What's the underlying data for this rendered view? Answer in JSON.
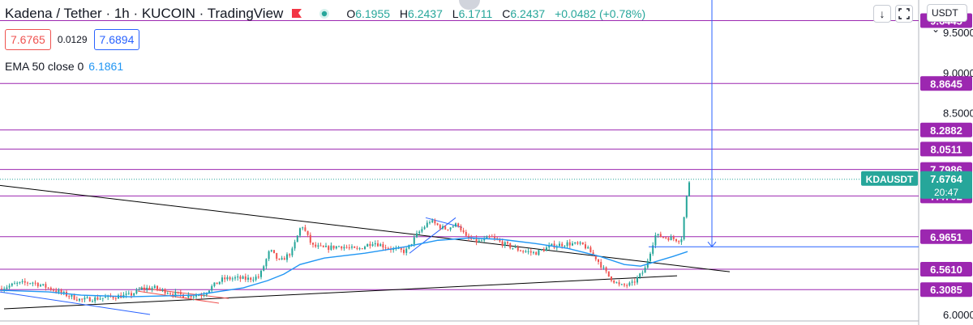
{
  "header": {
    "title": "Kadena / Tether · 1h · KUCOIN · TradingView",
    "ohlc": {
      "o_label": "O",
      "o": "6.1955",
      "h_label": "H",
      "h": "6.2437",
      "l_label": "L",
      "l": "6.1711",
      "c_label": "C",
      "c": "6.2437",
      "change": "+0.0482 (+0.78%)"
    }
  },
  "quote": {
    "sell": "7.6765",
    "spread": "0.0129",
    "buy": "7.6894"
  },
  "indicator": {
    "label": "EMA 50 close 0",
    "value": "6.1861"
  },
  "toolbar": {
    "currency": "USDT",
    "currency_caret": "⌄",
    "scroll_icon": "↓"
  },
  "colors": {
    "up": "#26a69a",
    "down": "#ef5350",
    "ema": "#2196f3",
    "level": "#9c27b0",
    "trend": "#000000",
    "channel": "#ef5350",
    "crosshair": "#2962ff",
    "last_price": "#26a69a"
  },
  "chart_data": {
    "type": "candlestick",
    "symbol": "KDAUSDT",
    "ylim": [
      5.93,
      9.9
    ],
    "yticks": [
      "9.5000",
      "9.0000",
      "8.5000",
      "6.0000"
    ],
    "yticks_values": [
      9.5,
      9.0,
      8.5,
      6.0
    ],
    "levels": [
      {
        "value": 9.6445,
        "label": "9.6445"
      },
      {
        "value": 8.8645,
        "label": "8.8645"
      },
      {
        "value": 8.2882,
        "label": "8.2882"
      },
      {
        "value": 8.0511,
        "label": "8.0511"
      },
      {
        "value": 7.7986,
        "label": "7.7986"
      },
      {
        "value": 7.4702,
        "label": "7.4702"
      },
      {
        "value": 6.9651,
        "label": "6.9651"
      },
      {
        "value": 6.561,
        "label": "6.5610"
      },
      {
        "value": 6.3085,
        "label": "6.3085"
      }
    ],
    "last_price": {
      "value": 7.6764,
      "label": "7.6764",
      "symbol_label": "KDAUSDT",
      "countdown": "20:47"
    },
    "price_path": [
      [
        0,
        6.32
      ],
      [
        20,
        6.38
      ],
      [
        40,
        6.4
      ],
      [
        60,
        6.33
      ],
      [
        80,
        6.25
      ],
      [
        100,
        6.18
      ],
      [
        120,
        6.2
      ],
      [
        140,
        6.22
      ],
      [
        160,
        6.24
      ],
      [
        175,
        6.32
      ],
      [
        190,
        6.33
      ],
      [
        210,
        6.27
      ],
      [
        230,
        6.23
      ],
      [
        250,
        6.25
      ],
      [
        262,
        6.35
      ],
      [
        275,
        6.44
      ],
      [
        290,
        6.45
      ],
      [
        305,
        6.44
      ],
      [
        320,
        6.47
      ],
      [
        333,
        6.8
      ],
      [
        345,
        6.65
      ],
      [
        360,
        6.78
      ],
      [
        372,
        7.12
      ],
      [
        385,
        6.85
      ],
      [
        400,
        6.82
      ],
      [
        420,
        6.85
      ],
      [
        440,
        6.8
      ],
      [
        460,
        6.9
      ],
      [
        480,
        6.82
      ],
      [
        500,
        6.78
      ],
      [
        515,
        7.0
      ],
      [
        530,
        7.16
      ],
      [
        548,
        7.06
      ],
      [
        565,
        7.12
      ],
      [
        575,
        6.95
      ],
      [
        590,
        6.9
      ],
      [
        605,
        6.96
      ],
      [
        620,
        6.88
      ],
      [
        640,
        6.8
      ],
      [
        660,
        6.76
      ],
      [
        680,
        6.85
      ],
      [
        700,
        6.88
      ],
      [
        720,
        6.86
      ],
      [
        735,
        6.7
      ],
      [
        750,
        6.48
      ],
      [
        765,
        6.35
      ],
      [
        780,
        6.38
      ],
      [
        795,
        6.55
      ],
      [
        808,
        6.98
      ],
      [
        825,
        6.95
      ],
      [
        840,
        6.92
      ],
      [
        848,
        7.55
      ],
      [
        851,
        7.7
      ]
    ],
    "ema": [
      [
        0,
        6.3
      ],
      [
        60,
        6.28
      ],
      [
        100,
        6.24
      ],
      [
        160,
        6.22
      ],
      [
        240,
        6.24
      ],
      [
        300,
        6.33
      ],
      [
        330,
        6.42
      ],
      [
        350,
        6.5
      ],
      [
        370,
        6.62
      ],
      [
        400,
        6.7
      ],
      [
        450,
        6.76
      ],
      [
        500,
        6.84
      ],
      [
        540,
        6.92
      ],
      [
        580,
        6.95
      ],
      [
        620,
        6.93
      ],
      [
        660,
        6.88
      ],
      [
        700,
        6.82
      ],
      [
        740,
        6.72
      ],
      [
        770,
        6.62
      ],
      [
        790,
        6.6
      ],
      [
        810,
        6.66
      ],
      [
        830,
        6.72
      ],
      [
        848,
        6.78
      ]
    ],
    "trendlines": [
      {
        "from": [
          0,
          7.6
        ],
        "to": [
          900,
          6.53
        ],
        "color": "#000000"
      },
      {
        "from": [
          5,
          6.07
        ],
        "to": [
          835,
          6.48
        ],
        "color": "#000000"
      },
      {
        "from": [
          0,
          6.28
        ],
        "to": [
          185,
          6.0
        ],
        "color": "#2962ff"
      },
      {
        "from": [
          505,
          6.76
        ],
        "to": [
          562,
          7.2
        ],
        "color": "#2962ff"
      },
      {
        "from": [
          525,
          7.2
        ],
        "to": [
          570,
          7.08
        ],
        "color": "#2962ff"
      }
    ],
    "channel": [
      {
        "from": [
          172,
          6.33
        ],
        "to": [
          282,
          6.2
        ]
      },
      {
        "from": [
          170,
          6.29
        ],
        "to": [
          270,
          6.14
        ]
      }
    ],
    "crosshair": {
      "x": 878,
      "y": 6.84
    }
  }
}
